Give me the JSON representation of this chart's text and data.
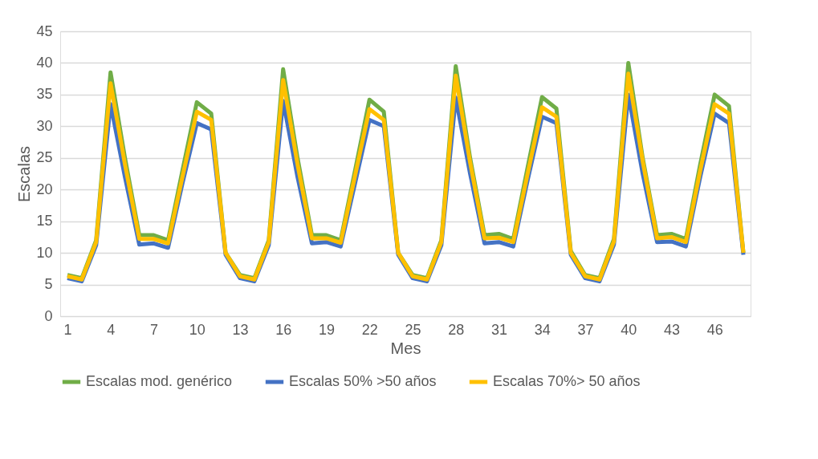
{
  "chart_data": {
    "type": "line",
    "xlabel": "Mes",
    "ylabel": "Escalas",
    "categories": [
      "1",
      null,
      null,
      "4",
      null,
      null,
      "7",
      null,
      null,
      "10",
      null,
      null,
      "13",
      null,
      null,
      "16",
      null,
      null,
      "19",
      null,
      null,
      "22",
      null,
      null,
      "25",
      null,
      null,
      "28",
      null,
      null,
      "31",
      null,
      null,
      "34",
      null,
      null,
      "37",
      null,
      null,
      "40",
      null,
      null,
      "43",
      null,
      null,
      "46",
      null,
      null
    ],
    "series": [
      {
        "name": "Escalas mod. genérico",
        "color": "#70ad47",
        "values": [
          6.5,
          6,
          12,
          38.5,
          25,
          12.8,
          12.8,
          12,
          23,
          33.8,
          32,
          10,
          6.5,
          6,
          12,
          39,
          25,
          12.8,
          12.8,
          12,
          23,
          34.2,
          32.3,
          10,
          6.5,
          6,
          12,
          39.5,
          25,
          12.8,
          13,
          12.2,
          23.5,
          34.6,
          32.8,
          10.3,
          6.5,
          6,
          12.2,
          40,
          25,
          12.8,
          13,
          12.2,
          24,
          35,
          33.2,
          10
        ]
      },
      {
        "name": "Escalas 50% >50 años",
        "color": "#4472c4",
        "values": [
          6,
          5.5,
          11.2,
          33.5,
          22,
          11.3,
          11.5,
          10.8,
          21,
          30.5,
          29.5,
          9.7,
          6,
          5.5,
          11.2,
          34,
          22,
          11.5,
          11.7,
          11,
          21,
          31,
          30,
          9.7,
          6,
          5.5,
          11.2,
          34.5,
          22.5,
          11.5,
          11.7,
          11,
          21.5,
          31.5,
          30.5,
          9.7,
          6,
          5.5,
          11.3,
          35,
          22.5,
          11.7,
          11.8,
          11,
          22,
          32,
          30.5,
          9.7
        ]
      },
      {
        "name": "Escalas 70%> 50 años",
        "color": "#ffc000",
        "values": [
          6.3,
          5.8,
          11.7,
          36.8,
          24,
          12.2,
          12.2,
          11.5,
          22,
          32.3,
          31,
          10,
          6.3,
          5.8,
          11.7,
          37.3,
          24,
          12.3,
          12.3,
          11.6,
          22.2,
          32.7,
          31,
          10,
          6.3,
          5.8,
          11.7,
          38,
          24.3,
          12.3,
          12.4,
          11.7,
          22.5,
          33,
          31.5,
          10,
          6.3,
          5.8,
          11.8,
          38.3,
          24.5,
          12.3,
          12.5,
          11.7,
          23,
          33.5,
          32,
          10
        ]
      }
    ],
    "ylim": [
      0,
      45
    ],
    "yticks": [
      0,
      5,
      10,
      15,
      20,
      25,
      30,
      35,
      40,
      45
    ],
    "grid": "y",
    "legend": "bottom",
    "marker": "none",
    "line_style": "solid"
  }
}
